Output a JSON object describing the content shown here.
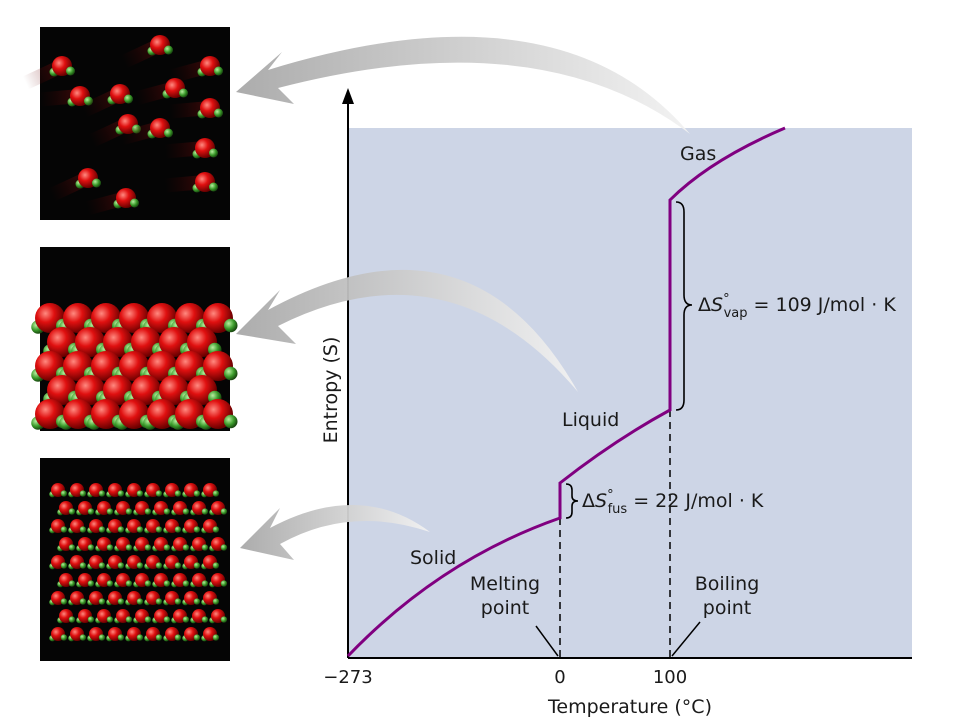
{
  "diagram": {
    "x_axis_label": "Temperature (°C)",
    "y_axis_label": "Entropy (S)",
    "x_ticks": [
      "−273",
      "0",
      "100"
    ],
    "phase_labels": {
      "solid": "Solid",
      "liquid": "Liquid",
      "gas": "Gas"
    },
    "melting_point_label": [
      "Melting",
      "point"
    ],
    "boiling_point_label": [
      "Boiling",
      "point"
    ],
    "fusion_equation": {
      "delta": "Δ",
      "symbol": "S",
      "degree": "°",
      "sub": "fus",
      "rest": " = 22 J/mol · K"
    },
    "vaporization_equation": {
      "delta": "Δ",
      "symbol": "S",
      "degree": "°",
      "sub": "vap",
      "rest": " = 109 J/mol · K"
    },
    "colors": {
      "plot_background": "#cdd5e6",
      "curve": "#800080",
      "arrow": "#b8b8b8",
      "axis": "#000000"
    },
    "molecule_panels": [
      "gas-molecules",
      "liquid-molecules",
      "solid-molecules"
    ]
  }
}
